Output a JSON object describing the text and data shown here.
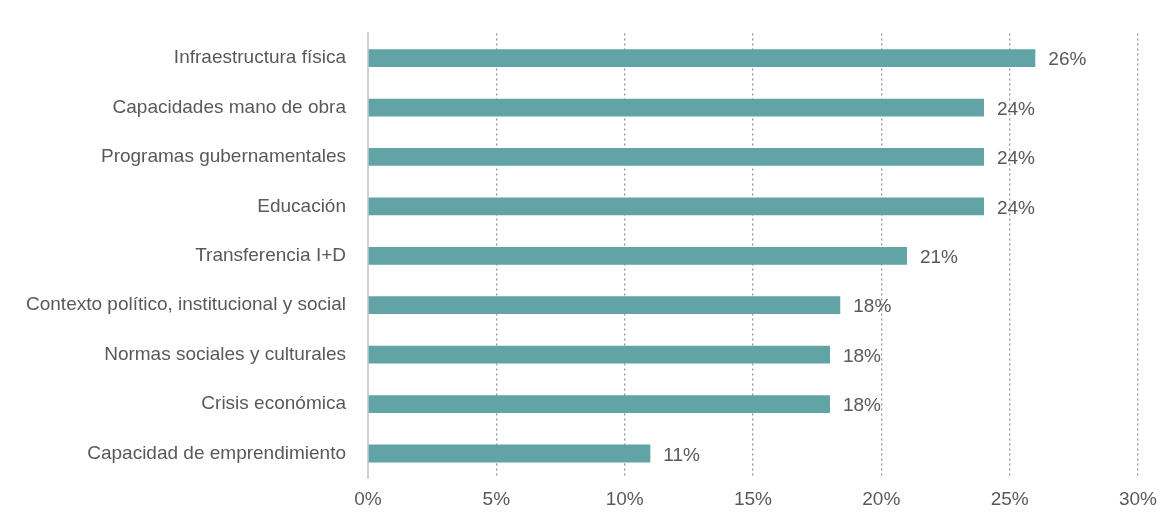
{
  "chart_data": {
    "type": "bar",
    "orientation": "horizontal",
    "categories": [
      "Infraestructura física",
      "Capacidades mano de obra",
      "Programas gubernamentales",
      "Educación",
      "Transferencia I+D",
      "Contexto político, institucional y social",
      "Normas sociales y culturales",
      "Crisis económica",
      "Capacidad de emprendimiento"
    ],
    "values": [
      26,
      24,
      24,
      24,
      21,
      18.4,
      18,
      18,
      11
    ],
    "value_labels": [
      "26%",
      "24%",
      "24%",
      "24%",
      "21%",
      "18%",
      "18%",
      "18%",
      "11%"
    ],
    "color": "#62a3a5",
    "xlim": [
      0,
      30
    ],
    "xticks": [
      {
        "value": 0,
        "label": "0%"
      },
      {
        "value": 5,
        "label": "5%"
      },
      {
        "value": 10,
        "label": "10%"
      },
      {
        "value": 15,
        "label": "15%"
      },
      {
        "value": 20,
        "label": "20%"
      },
      {
        "value": 25,
        "label": "25%"
      },
      {
        "value": 30,
        "label": "30%"
      }
    ],
    "grid": "x",
    "legend": false
  }
}
